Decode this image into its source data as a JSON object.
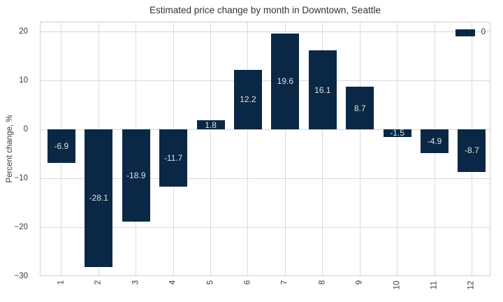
{
  "chart_data": {
    "type": "bar",
    "title": "Estimated price change by month in Downtown, Seattle",
    "categories": [
      "1",
      "2",
      "3",
      "4",
      "5",
      "6",
      "7",
      "8",
      "9",
      "10",
      "11",
      "12"
    ],
    "values": [
      -6.9,
      -28.1,
      -18.9,
      -11.7,
      1.8,
      12.2,
      19.6,
      16.1,
      8.7,
      -1.5,
      -4.9,
      -8.7
    ],
    "bar_labels": [
      "-6.9",
      "-28.1",
      "-18.9",
      "-11.7",
      "1.8",
      "12.2",
      "19.6",
      "16.1",
      "8.7",
      "-1.5",
      "-4.9",
      "-8.7"
    ],
    "xlabel": "",
    "ylabel": "Percent change, %",
    "ylim": [
      -30,
      22
    ],
    "yticks": [
      20,
      10,
      0,
      -10,
      -20,
      -30
    ],
    "ytick_labels": [
      "20",
      "10",
      "0",
      "−10",
      "−20",
      "−30"
    ],
    "grid": true,
    "legend_position": "top-right",
    "legend": {
      "entries": [
        {
          "label": "0",
          "color": "#0a2845"
        }
      ]
    },
    "colors": {
      "bar": "#0a2845",
      "bar_label_text": "#e0e0e0",
      "grid_line": "#d9d9d9",
      "axis_border": "#d2d2d2",
      "tick_text": "#3a3a3a",
      "title_text": "#333333",
      "background": "#ffffff"
    }
  }
}
